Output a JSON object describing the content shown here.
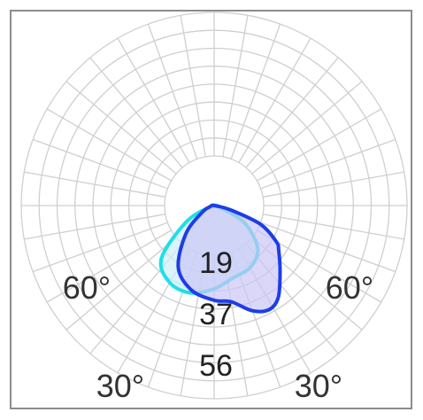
{
  "chart_data": {
    "type": "polar",
    "title": "",
    "grid": true,
    "radial_ticks": [
      "19",
      "37",
      "56"
    ],
    "angle_ticks": [
      {
        "label": "60°",
        "side": "left"
      },
      {
        "label": "60°",
        "side": "right"
      },
      {
        "label": "30°",
        "side": "left"
      },
      {
        "label": "30°",
        "side": "right"
      }
    ],
    "series": [
      {
        "color": "#1ce0ea",
        "fill": "#cdeef6",
        "points": [
          [
            -75,
            2
          ],
          [
            -60,
            22
          ],
          [
            -45,
            52
          ],
          [
            -30,
            62
          ],
          [
            -15,
            63
          ],
          [
            0,
            58
          ],
          [
            15,
            52
          ],
          [
            30,
            50
          ],
          [
            45,
            43
          ],
          [
            60,
            25
          ],
          [
            75,
            4
          ]
        ]
      },
      {
        "color": "#1d3ee6",
        "fill": "#cbc6f7",
        "points": [
          [
            -75,
            3
          ],
          [
            -60,
            10
          ],
          [
            -45,
            28
          ],
          [
            -30,
            50
          ],
          [
            -15,
            61
          ],
          [
            0,
            66
          ],
          [
            10,
            68
          ],
          [
            20,
            78
          ],
          [
            28,
            82
          ],
          [
            35,
            78
          ],
          [
            45,
            65
          ],
          [
            55,
            55
          ],
          [
            60,
            50
          ],
          [
            68,
            35
          ],
          [
            75,
            12
          ]
        ]
      }
    ]
  }
}
